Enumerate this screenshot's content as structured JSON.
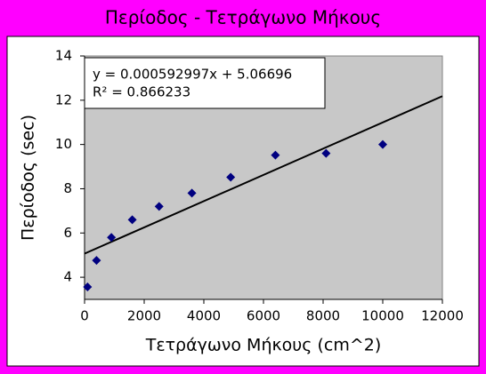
{
  "chart_data": {
    "type": "scatter",
    "title": "Περίοδος - Τετράγωνο Μήκους",
    "x_label": "Τετράγωνο Μήκους (cm^2)",
    "y_label": "Περίοδος (sec)",
    "series": [
      {
        "name": "Περίοδος",
        "color": "#000080",
        "x": [
          100,
          400,
          900,
          1600,
          2500,
          3600,
          4900,
          6400,
          8100,
          10000
        ],
        "values": [
          3.56,
          4.76,
          5.8,
          6.6,
          7.2,
          7.8,
          8.52,
          9.52,
          9.6,
          10.0
        ]
      }
    ],
    "trendline": {
      "equation": "y = 0.000592997x + 5.06696",
      "r2_label": "R² = 0.866233",
      "slope": 0.000592997,
      "intercept": 5.06696
    },
    "xlim": [
      0,
      12000
    ],
    "xticks": [
      0,
      2000,
      4000,
      6000,
      8000,
      10000,
      12000
    ],
    "ylim": [
      3,
      14
    ],
    "yticks": [
      4,
      6,
      8,
      10,
      12,
      14
    ],
    "grid": false
  }
}
